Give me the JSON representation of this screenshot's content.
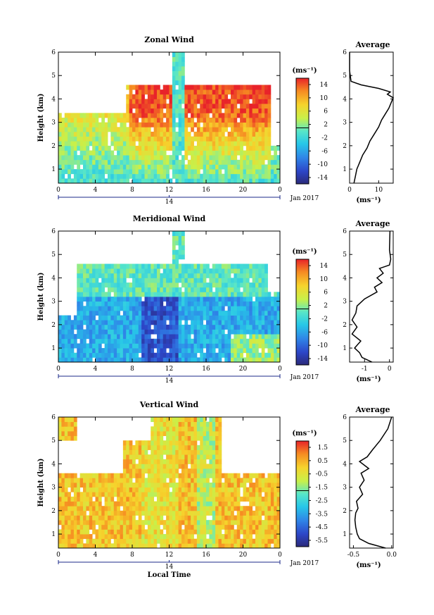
{
  "date_label": "Jan 2017",
  "day_label": "14",
  "xlabel": "Local Time",
  "colorbar_unit": "(ms⁻¹)",
  "avg_xlabel": "(ms⁻¹)",
  "chart_data": [
    {
      "type": "heatmap",
      "title": "Zonal Wind",
      "ylabel": "Height (km)",
      "x_ticks": [
        "0",
        "4",
        "8",
        "12",
        "16",
        "20",
        "0"
      ],
      "xlim": [
        0,
        24
      ],
      "ylim": [
        0.4,
        6
      ],
      "y_ticks": [
        1,
        2,
        3,
        4,
        5,
        6
      ],
      "colorbar": {
        "ticks": [
          "14",
          "10",
          "6",
          "2",
          "-2",
          "-6",
          "-10",
          "-14"
        ],
        "range": [
          -16,
          16
        ]
      },
      "profile": {
        "title": "Average",
        "x_ticks": [
          "0",
          "10"
        ],
        "xlim": [
          0,
          15
        ],
        "points": [
          [
            1.5,
            0.4
          ],
          [
            2,
            0.7
          ],
          [
            2.5,
            1
          ],
          [
            3.5,
            1.3
          ],
          [
            4.5,
            1.6
          ],
          [
            6,
            1.9
          ],
          [
            7,
            2.2
          ],
          [
            8.5,
            2.5
          ],
          [
            10,
            2.8
          ],
          [
            11,
            3.1
          ],
          [
            12,
            3.3
          ],
          [
            13.5,
            3.6
          ],
          [
            14.5,
            3.9
          ],
          [
            15,
            4.05
          ],
          [
            13,
            4.2
          ],
          [
            14,
            4.3
          ],
          [
            10,
            4.45
          ],
          [
            4,
            4.6
          ],
          [
            0.5,
            4.75
          ],
          [
            0,
            5.2
          ],
          [
            0,
            6
          ]
        ]
      }
    },
    {
      "type": "heatmap",
      "title": "Meridional Wind",
      "ylabel": "Height (km)",
      "x_ticks": [
        "0",
        "4",
        "8",
        "12",
        "16",
        "20",
        "0"
      ],
      "xlim": [
        0,
        24
      ],
      "ylim": [
        0.4,
        6
      ],
      "y_ticks": [
        1,
        2,
        3,
        4,
        5,
        6
      ],
      "colorbar": {
        "ticks": [
          "14",
          "10",
          "6",
          "2",
          "-2",
          "-6",
          "-10",
          "-14"
        ],
        "range": [
          -16,
          16
        ]
      },
      "profile": {
        "title": "Average",
        "x_ticks": [
          "-1",
          "0"
        ],
        "xlim": [
          -1.6,
          0.15
        ],
        "points": [
          [
            -0.7,
            0.4
          ],
          [
            -1.1,
            0.6
          ],
          [
            -1.2,
            0.8
          ],
          [
            -1.4,
            1
          ],
          [
            -1.15,
            1.3
          ],
          [
            -1.5,
            1.6
          ],
          [
            -1.3,
            1.9
          ],
          [
            -1.5,
            2.2
          ],
          [
            -1.35,
            2.5
          ],
          [
            -1.3,
            2.8
          ],
          [
            -1,
            3.1
          ],
          [
            -0.5,
            3.4
          ],
          [
            -0.6,
            3.6
          ],
          [
            -0.3,
            3.8
          ],
          [
            -0.5,
            4
          ],
          [
            -0.25,
            4.2
          ],
          [
            -0.4,
            4.4
          ],
          [
            0,
            4.55
          ],
          [
            0.05,
            4.8
          ],
          [
            0,
            5.2
          ],
          [
            0.02,
            6
          ]
        ]
      }
    },
    {
      "type": "heatmap",
      "title": "Vertical Wind",
      "ylabel": "Height (km)",
      "x_ticks": [
        "0",
        "4",
        "8",
        "12",
        "16",
        "20",
        "0"
      ],
      "xlim": [
        0,
        24
      ],
      "ylim": [
        0.4,
        6
      ],
      "y_ticks": [
        1,
        2,
        3,
        4,
        5,
        6
      ],
      "colorbar": {
        "ticks": [
          "1.5",
          "0.5",
          "-0.5",
          "-1.5",
          "-2.5",
          "-3.5",
          "-4.5",
          "-5.5"
        ],
        "range": [
          -6,
          2
        ]
      },
      "profile": {
        "title": "Average",
        "x_ticks": [
          "-0.5",
          "0.0"
        ],
        "xlim": [
          -0.55,
          0.02
        ],
        "points": [
          [
            -0.08,
            0.4
          ],
          [
            -0.3,
            0.6
          ],
          [
            -0.42,
            0.8
          ],
          [
            -0.45,
            1
          ],
          [
            -0.47,
            1.3
          ],
          [
            -0.48,
            1.6
          ],
          [
            -0.47,
            1.9
          ],
          [
            -0.44,
            2.1
          ],
          [
            -0.46,
            2.4
          ],
          [
            -0.38,
            2.7
          ],
          [
            -0.42,
            3
          ],
          [
            -0.36,
            3.3
          ],
          [
            -0.4,
            3.6
          ],
          [
            -0.3,
            3.8
          ],
          [
            -0.42,
            4.1
          ],
          [
            -0.32,
            4.3
          ],
          [
            -0.25,
            4.6
          ],
          [
            -0.15,
            5
          ],
          [
            -0.05,
            5.5
          ],
          [
            0,
            6
          ]
        ]
      }
    }
  ]
}
